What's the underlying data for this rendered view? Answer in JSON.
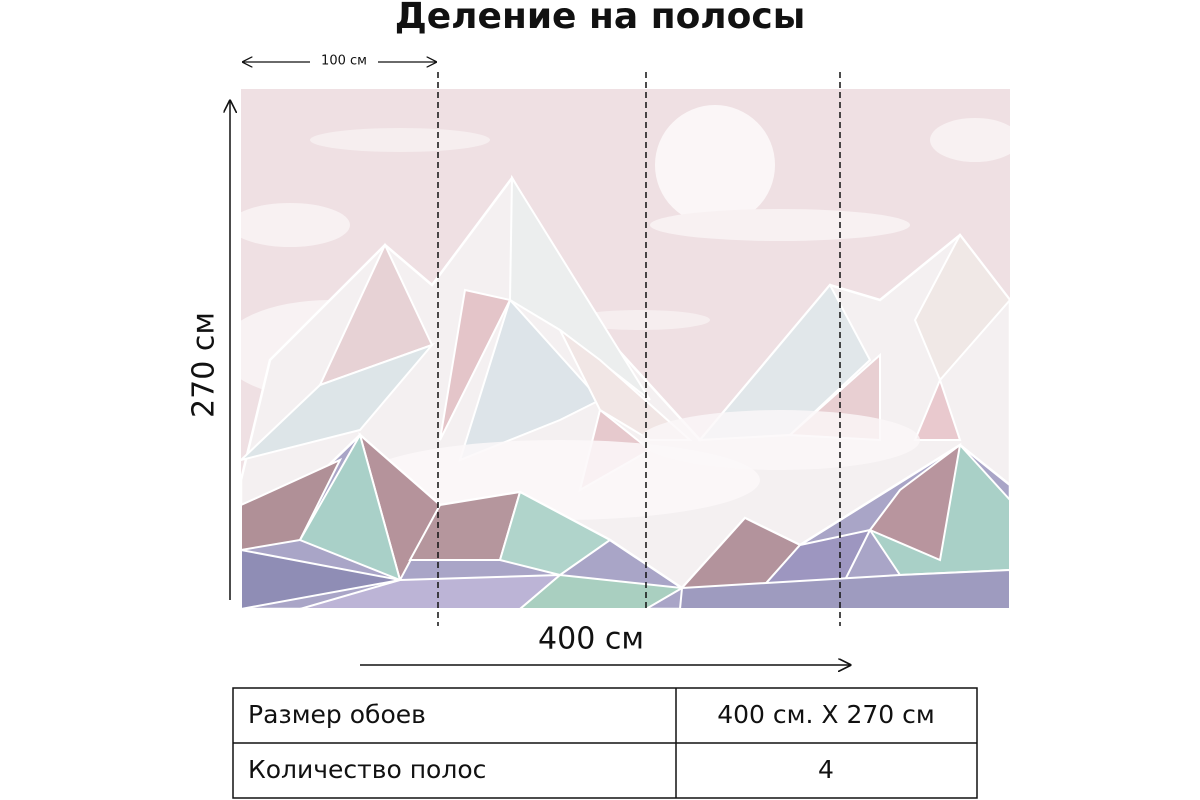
{
  "header": {
    "title": "Деление на полосы"
  },
  "dimensions": {
    "strip_width": "100 см",
    "height": "270 см",
    "width": "400 см"
  },
  "table": {
    "rows": [
      [
        "Размер обоев",
        "400 см. Х 270 см"
      ],
      [
        "Количество полос",
        "4"
      ]
    ]
  }
}
